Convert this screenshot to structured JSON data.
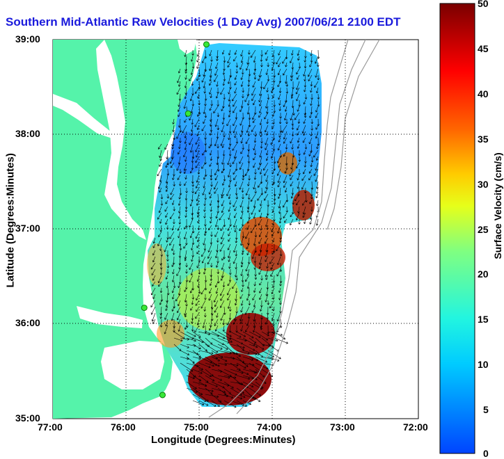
{
  "title": "Southern Mid-Atlantic Raw Velocities (1 Day Avg) 2007/06/21 2100 EDT",
  "x_axis": {
    "label": "Longitude (Degrees:Minutes)",
    "ticks": [
      "77:00",
      "76:00",
      "75:00",
      "74:00",
      "73:00",
      "72:00"
    ]
  },
  "y_axis": {
    "label": "Latitude (Degrees:Minutes)",
    "ticks": [
      "39:00",
      "38:00",
      "37:00",
      "36:00",
      "35:00"
    ]
  },
  "colorbar": {
    "label": "Surface Velocity (cm/s)",
    "ticks": [
      "50",
      "45",
      "40",
      "35",
      "30",
      "25",
      "20",
      "15",
      "10",
      "5",
      "0"
    ],
    "min": 0,
    "max": 50
  },
  "colors": {
    "land": "#55f3aa",
    "water": "#ffffff",
    "title": "#1a1adc",
    "station": "#38e838",
    "bathymetry": "#9a9a9a",
    "grid": "#000000"
  },
  "map": {
    "extent_lon": [
      -77.0,
      -72.0
    ],
    "extent_lat": [
      35.0,
      39.0
    ],
    "grid": "dotted",
    "stations": [
      {
        "lon": -74.9,
        "lat": 38.95
      },
      {
        "lon": -75.15,
        "lat": 38.22
      },
      {
        "lon": -75.75,
        "lat": 36.17
      },
      {
        "lon": -75.5,
        "lat": 35.25
      }
    ]
  }
}
